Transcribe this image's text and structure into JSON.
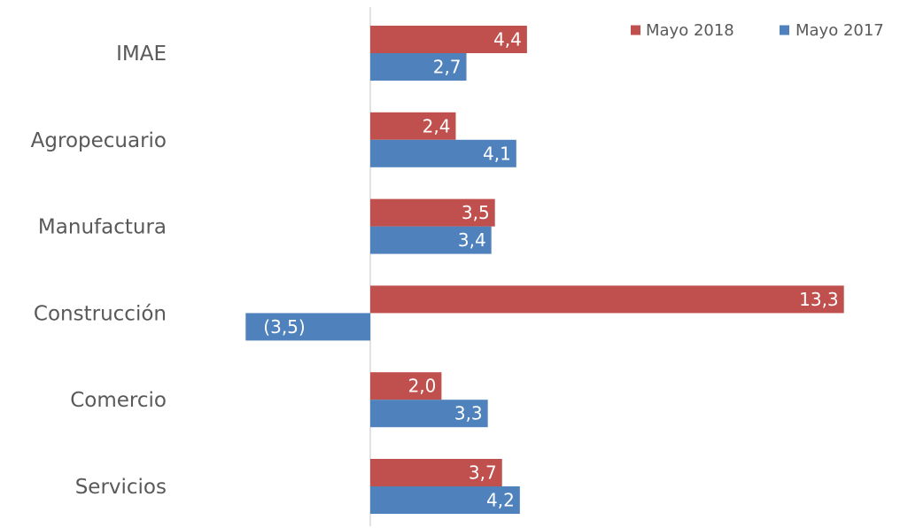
{
  "chart_data": {
    "type": "bar",
    "orientation": "horizontal",
    "categories": [
      "IMAE",
      "Agropecuario",
      "Manufactura",
      "Construcción",
      "Comercio",
      "Servicios"
    ],
    "series": [
      {
        "name": "Mayo 2018",
        "color": "#C0504D",
        "values": [
          4.4,
          2.4,
          3.5,
          13.3,
          2.0,
          3.7
        ],
        "labels": [
          "4,4",
          "2,4",
          "3,5",
          "13,3",
          "2,0",
          "3,7"
        ]
      },
      {
        "name": "Mayo 2017",
        "color": "#4F81BD",
        "values": [
          2.7,
          4.1,
          3.4,
          -3.5,
          3.3,
          4.2
        ],
        "labels": [
          "2,7",
          "4,1",
          "3,4",
          "(3,5)",
          "3,3",
          "4,2"
        ]
      }
    ],
    "title": "",
    "xlabel": "",
    "ylabel": "",
    "xlim": [
      -3.5,
      13.3
    ],
    "axis_color": "#D9D9D9",
    "legend_position": "top-right",
    "grid": false
  }
}
